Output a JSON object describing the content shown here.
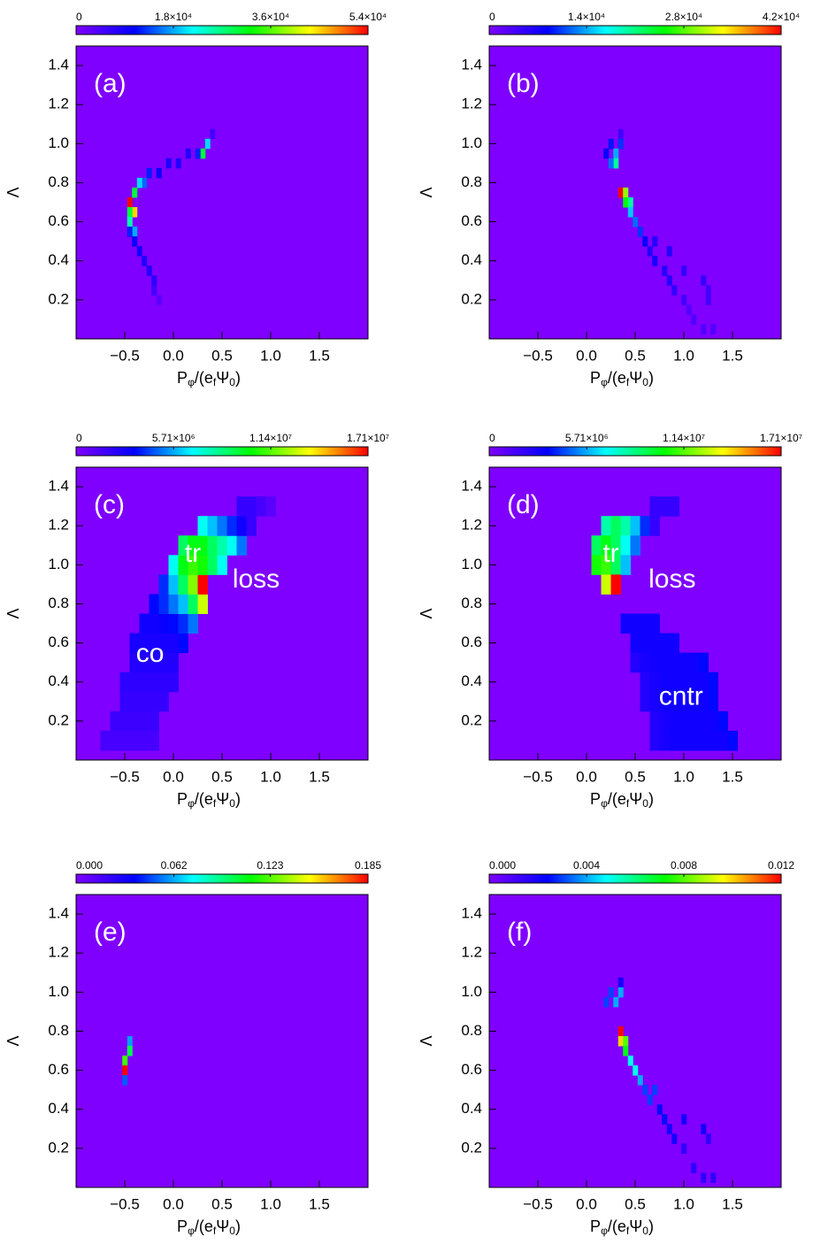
{
  "chart_data": [
    {
      "type": "heatmap",
      "label": "(a)",
      "clim": [
        0,
        54000
      ],
      "cbticks": [
        0,
        {
          "value": 18000,
          "label": "1.8×10⁴"
        },
        {
          "value": 36000,
          "label": "3.6×10⁴"
        },
        {
          "value": 54000,
          "label": "5.4×10⁴"
        }
      ],
      "colormap": [
        "#7f00ff",
        "#0000ff",
        "#00ffff",
        "#00ff00",
        "#ffff00",
        "#ff0000"
      ],
      "xlim": [
        -1.0,
        2.0
      ],
      "xticks": [
        {
          "value": -0.5,
          "label": "−0.5"
        },
        {
          "value": 0,
          "label": "0.0"
        },
        0.5,
        {
          "value": 1,
          "label": "1.0"
        },
        1.5
      ],
      "ylim": [
        0,
        1.5
      ],
      "yticks": [
        0.2,
        0.4,
        0.6,
        0.8,
        {
          "value": 1,
          "label": "1.0"
        },
        1.2,
        1.4
      ],
      "xlabel": [
        "P",
        "φ",
        "/(e",
        "f",
        "Ψ",
        "0",
        ")"
      ],
      "ylabel": "Λ",
      "x": [
        0.4,
        0.35,
        0.3,
        0.25,
        0.15,
        0.05,
        -0.05,
        -0.15,
        -0.25,
        -0.3,
        -0.35,
        -0.4,
        -0.45,
        -0.4,
        -0.45,
        -0.45,
        -0.4,
        -0.45,
        -0.4,
        -0.35,
        -0.3,
        -0.25,
        -0.2,
        -0.2,
        -0.15
      ],
      "y": [
        1.05,
        1.0,
        0.95,
        0.95,
        0.95,
        0.9,
        0.9,
        0.85,
        0.85,
        0.8,
        0.8,
        0.75,
        0.7,
        0.65,
        0.65,
        0.6,
        0.55,
        0.55,
        0.5,
        0.45,
        0.4,
        0.35,
        0.3,
        0.25,
        0.2
      ],
      "values": [
        5000,
        20000,
        30000,
        12000,
        8000,
        8000,
        9000,
        10000,
        12000,
        15000,
        20000,
        30000,
        54000,
        45000,
        30000,
        25000,
        18000,
        12000,
        10000,
        9000,
        8000,
        8000,
        7000,
        5000,
        3000
      ],
      "annotations": []
    },
    {
      "type": "heatmap",
      "label": "(b)",
      "clim": [
        0,
        42000
      ],
      "cbticks": [
        0,
        {
          "value": 14000,
          "label": "1.4×10⁴"
        },
        {
          "value": 28000,
          "label": "2.8×10⁴"
        },
        {
          "value": 42000,
          "label": "4.2×10⁴"
        }
      ],
      "colormap": [
        "#7f00ff",
        "#0000ff",
        "#00ffff",
        "#00ff00",
        "#ffff00",
        "#ff0000"
      ],
      "xlim": [
        -1.0,
        2.0
      ],
      "xticks": [
        {
          "value": -0.5,
          "label": "−0.5"
        },
        {
          "value": 0,
          "label": "0.0"
        },
        0.5,
        {
          "value": 1,
          "label": "1.0"
        },
        1.5
      ],
      "ylim": [
        0,
        1.5
      ],
      "yticks": [
        0.2,
        0.4,
        0.6,
        0.8,
        {
          "value": 1,
          "label": "1.0"
        },
        1.2,
        1.4
      ],
      "xlabel": [
        "P",
        "φ",
        "/(e",
        "f",
        "Ψ",
        "0",
        ")"
      ],
      "ylabel": "Λ",
      "x": [
        0.35,
        0.25,
        0.35,
        0.2,
        0.3,
        0.3,
        0.25,
        0.35,
        0.4,
        0.4,
        0.45,
        0.45,
        0.5,
        0.55,
        0.6,
        0.7,
        0.85,
        0.65,
        0.7,
        0.8,
        1.0,
        0.85,
        1.2,
        0.9,
        1.25,
        1.0,
        1.25,
        1.05,
        1.1,
        1.2,
        1.3
      ],
      "y": [
        1.05,
        1.0,
        1.0,
        0.95,
        0.95,
        0.9,
        0.9,
        0.75,
        0.75,
        0.7,
        0.7,
        0.65,
        0.6,
        0.55,
        0.5,
        0.5,
        0.45,
        0.45,
        0.4,
        0.35,
        0.35,
        0.3,
        0.3,
        0.25,
        0.25,
        0.2,
        0.2,
        0.15,
        0.1,
        0.05,
        0.05
      ],
      "values": [
        4000,
        9000,
        10000,
        8000,
        14000,
        20000,
        12000,
        42000,
        30000,
        25000,
        20000,
        15000,
        12000,
        10000,
        8000,
        6000,
        6000,
        6000,
        7000,
        6000,
        5000,
        6000,
        5000,
        5000,
        4000,
        4000,
        4000,
        3000,
        3000,
        3000,
        3000
      ],
      "annotations": []
    },
    {
      "type": "heatmap",
      "label": "(c)",
      "clim": [
        0,
        17100000
      ],
      "cbticks": [
        0,
        {
          "value": 5710000,
          "label": "5.71×10⁶"
        },
        {
          "value": 11400000,
          "label": "1.14×10⁷"
        },
        {
          "value": 17100000,
          "label": "1.71×10⁷"
        }
      ],
      "colormap": [
        "#7f00ff",
        "#0000ff",
        "#00ffff",
        "#00ff00",
        "#ffff00",
        "#ff0000"
      ],
      "xlim": [
        -1.0,
        2.0
      ],
      "xticks": [
        {
          "value": -0.5,
          "label": "−0.5"
        },
        {
          "value": 0,
          "label": "0.0"
        },
        0.5,
        {
          "value": 1,
          "label": "1.0"
        },
        1.5
      ],
      "ylim": [
        0,
        1.5
      ],
      "yticks": [
        0.2,
        0.4,
        0.6,
        0.8,
        {
          "value": 1,
          "label": "1.0"
        },
        1.2,
        1.4
      ],
      "xlabel": [
        "P",
        "φ",
        "/(e",
        "f",
        "Ψ",
        "0",
        ")"
      ],
      "ylabel": "Λ",
      "x": [
        -0.7,
        -0.6,
        -0.5,
        -0.4,
        -0.3,
        -0.2,
        -0.6,
        -0.5,
        -0.4,
        -0.3,
        -0.2,
        -0.5,
        -0.4,
        -0.3,
        -0.2,
        -0.1,
        -0.5,
        -0.4,
        -0.3,
        -0.2,
        -0.1,
        0.0,
        -0.4,
        -0.3,
        -0.2,
        -0.1,
        0.0,
        -0.4,
        -0.3,
        -0.2,
        -0.1,
        0.0,
        0.1,
        -0.3,
        -0.2,
        -0.1,
        0.0,
        0.1,
        0.2,
        -0.2,
        -0.1,
        0.0,
        0.1,
        0.2,
        0.3,
        -0.1,
        0.0,
        0.1,
        0.2,
        0.3,
        0.0,
        0.1,
        0.2,
        0.3,
        0.4,
        0.5,
        0.1,
        0.2,
        0.3,
        0.4,
        0.5,
        0.6,
        0.7,
        0.3,
        0.4,
        0.5,
        0.6,
        0.7,
        0.8,
        0.7,
        0.8,
        0.9,
        1.0
      ],
      "y": [
        0.1,
        0.1,
        0.1,
        0.1,
        0.1,
        0.1,
        0.2,
        0.2,
        0.2,
        0.2,
        0.2,
        0.3,
        0.3,
        0.3,
        0.3,
        0.3,
        0.4,
        0.4,
        0.4,
        0.4,
        0.4,
        0.4,
        0.5,
        0.5,
        0.5,
        0.5,
        0.5,
        0.6,
        0.6,
        0.6,
        0.6,
        0.6,
        0.6,
        0.7,
        0.7,
        0.7,
        0.7,
        0.7,
        0.7,
        0.8,
        0.8,
        0.8,
        0.8,
        0.8,
        0.8,
        0.9,
        0.9,
        0.9,
        0.9,
        0.9,
        1.0,
        1.0,
        1.0,
        1.0,
        1.0,
        1.0,
        1.1,
        1.1,
        1.1,
        1.1,
        1.1,
        1.1,
        1.1,
        1.2,
        1.2,
        1.2,
        1.2,
        1.2,
        1.2,
        1.3,
        1.3,
        1.3,
        1.3
      ],
      "values": [
        1500000,
        1500000,
        1500000,
        1500000,
        1500000,
        1500000,
        1800000,
        1800000,
        1800000,
        1800000,
        1800000,
        2000000,
        2000000,
        2000000,
        2000000,
        2000000,
        2200000,
        2200000,
        2200000,
        2200000,
        2200000,
        2200000,
        2500000,
        2500000,
        2500000,
        2500000,
        2500000,
        2800000,
        2800000,
        2800000,
        2800000,
        2800000,
        3500000,
        3000000,
        3000000,
        3200000,
        3500000,
        4000000,
        5000000,
        3500000,
        4000000,
        5000000,
        6000000,
        9000000,
        13000000,
        4000000,
        6000000,
        9000000,
        12000000,
        17100000,
        7000000,
        10000000,
        11000000,
        10500000,
        9000000,
        7000000,
        9000000,
        10000000,
        10000000,
        9000000,
        8000000,
        7000000,
        5000000,
        7000000,
        6000000,
        5000000,
        4000000,
        3000000,
        2000000,
        2000000,
        2000000,
        1500000,
        1000000
      ],
      "annotations": [
        "tr",
        "loss",
        "co"
      ]
    },
    {
      "type": "heatmap",
      "label": "(d)",
      "clim": [
        0,
        17100000
      ],
      "cbticks": [
        0,
        {
          "value": 5710000,
          "label": "5.71×10⁶"
        },
        {
          "value": 11400000,
          "label": "1.14×10⁷"
        },
        {
          "value": 17100000,
          "label": "1.71×10⁷"
        }
      ],
      "colormap": [
        "#7f00ff",
        "#0000ff",
        "#00ffff",
        "#00ff00",
        "#ffff00",
        "#ff0000"
      ],
      "xlim": [
        -1.0,
        2.0
      ],
      "xticks": [
        {
          "value": -0.5,
          "label": "−0.5"
        },
        {
          "value": 0,
          "label": "0.0"
        },
        0.5,
        {
          "value": 1,
          "label": "1.0"
        },
        1.5
      ],
      "ylim": [
        0,
        1.5
      ],
      "yticks": [
        0.2,
        0.4,
        0.6,
        0.8,
        {
          "value": 1,
          "label": "1.0"
        },
        1.2,
        1.4
      ],
      "xlabel": [
        "P",
        "φ",
        "/(e",
        "f",
        "Ψ",
        "0",
        ")"
      ],
      "ylabel": "Λ",
      "x": [
        0.7,
        0.8,
        0.9,
        0.2,
        0.3,
        0.4,
        0.5,
        0.6,
        0.7,
        0.1,
        0.2,
        0.3,
        0.4,
        0.5,
        0.1,
        0.2,
        0.3,
        0.4,
        0.2,
        0.3,
        0.4,
        0.5,
        0.6,
        0.7,
        0.5,
        0.6,
        0.7,
        0.8,
        0.9,
        0.5,
        0.6,
        0.7,
        0.8,
        0.9,
        1.0,
        1.1,
        1.2,
        0.6,
        0.7,
        0.8,
        0.9,
        1.0,
        1.1,
        1.2,
        1.3,
        0.6,
        0.7,
        0.8,
        0.9,
        1.0,
        1.1,
        1.2,
        1.3,
        0.7,
        0.8,
        0.9,
        1.0,
        1.1,
        1.2,
        1.3,
        1.4,
        0.7,
        0.8,
        0.9,
        1.0,
        1.1,
        1.2,
        1.3,
        1.4,
        1.5
      ],
      "y": [
        1.3,
        1.3,
        1.3,
        1.2,
        1.2,
        1.2,
        1.2,
        1.2,
        1.2,
        1.1,
        1.1,
        1.1,
        1.1,
        1.1,
        1.0,
        1.0,
        1.0,
        1.0,
        0.9,
        0.9,
        0.7,
        0.7,
        0.7,
        0.7,
        0.6,
        0.6,
        0.6,
        0.6,
        0.6,
        0.5,
        0.5,
        0.5,
        0.5,
        0.5,
        0.5,
        0.5,
        0.5,
        0.4,
        0.4,
        0.4,
        0.4,
        0.4,
        0.4,
        0.4,
        0.4,
        0.3,
        0.3,
        0.3,
        0.3,
        0.3,
        0.3,
        0.3,
        0.3,
        0.2,
        0.2,
        0.2,
        0.2,
        0.2,
        0.2,
        0.2,
        0.2,
        0.1,
        0.1,
        0.1,
        0.1,
        0.1,
        0.1,
        0.1,
        0.1,
        0.1
      ],
      "values": [
        2000000,
        2000000,
        2000000,
        8000000,
        9000000,
        8000000,
        6000000,
        4000000,
        2000000,
        9000000,
        10000000,
        9000000,
        7000000,
        5000000,
        10500000,
        11000000,
        9000000,
        6000000,
        13000000,
        17100000,
        3000000,
        3000000,
        3000000,
        3000000,
        3000000,
        3000000,
        3000000,
        3000000,
        3000000,
        2500000,
        2800000,
        3000000,
        3000000,
        3000000,
        3000000,
        3000000,
        3500000,
        2500000,
        2800000,
        3000000,
        3000000,
        3000000,
        3000000,
        3000000,
        3500000,
        2500000,
        2800000,
        3000000,
        3000000,
        3000000,
        3000000,
        3000000,
        3500000,
        2500000,
        2800000,
        3000000,
        3000000,
        3000000,
        3000000,
        3000000,
        3500000,
        2500000,
        2800000,
        3000000,
        3000000,
        3000000,
        3000000,
        3000000,
        3000000,
        3500000
      ],
      "annotations": [
        "tr",
        "loss",
        "cntr"
      ]
    },
    {
      "type": "heatmap",
      "label": "(e)",
      "clim": [
        0,
        0.185
      ],
      "cbticks": [
        {
          "value": 0,
          "label": "0.000"
        },
        0.062,
        0.123,
        0.185
      ],
      "colormap": [
        "#7f00ff",
        "#0000ff",
        "#00ffff",
        "#00ff00",
        "#ffff00",
        "#ff0000"
      ],
      "xlim": [
        -1.0,
        2.0
      ],
      "xticks": [
        {
          "value": -0.5,
          "label": "−0.5"
        },
        {
          "value": 0,
          "label": "0.0"
        },
        0.5,
        {
          "value": 1,
          "label": "1.0"
        },
        1.5
      ],
      "ylim": [
        0,
        1.5
      ],
      "yticks": [
        0.2,
        0.4,
        0.6,
        0.8,
        {
          "value": 1,
          "label": "1.0"
        },
        1.2,
        1.4
      ],
      "xlabel": [
        "P",
        "φ",
        "/(e",
        "f",
        "Ψ",
        "0",
        ")"
      ],
      "ylabel": "Λ",
      "x": [
        -0.45,
        -0.45,
        -0.5,
        -0.5,
        -0.5
      ],
      "y": [
        0.75,
        0.7,
        0.65,
        0.6,
        0.55
      ],
      "values": [
        0.06,
        0.1,
        0.12,
        0.185,
        0.05
      ],
      "annotations": []
    },
    {
      "type": "heatmap",
      "label": "(f)",
      "clim": [
        0,
        0.012
      ],
      "cbticks": [
        {
          "value": 0,
          "label": "0.000"
        },
        {
          "value": 0.004,
          "label": "0.004"
        },
        {
          "value": 0.008,
          "label": "0.008"
        },
        0.012
      ],
      "colormap": [
        "#7f00ff",
        "#0000ff",
        "#00ffff",
        "#00ff00",
        "#ffff00",
        "#ff0000"
      ],
      "xlim": [
        -1.0,
        2.0
      ],
      "xticks": [
        {
          "value": -0.5,
          "label": "−0.5"
        },
        {
          "value": 0,
          "label": "0.0"
        },
        0.5,
        {
          "value": 1,
          "label": "1.0"
        },
        1.5
      ],
      "ylim": [
        0,
        1.5
      ],
      "yticks": [
        0.2,
        0.4,
        0.6,
        0.8,
        {
          "value": 1,
          "label": "1.0"
        },
        1.2,
        1.4
      ],
      "xlabel": [
        "P",
        "φ",
        "/(e",
        "f",
        "Ψ",
        "0",
        ")"
      ],
      "ylabel": "Λ",
      "x": [
        0.35,
        0.25,
        0.35,
        0.2,
        0.3,
        0.35,
        0.35,
        0.4,
        0.4,
        0.45,
        0.5,
        0.55,
        0.6,
        0.7,
        0.65,
        0.75,
        0.8,
        0.85,
        1.0,
        0.9,
        1.2,
        1.0,
        1.25,
        1.1,
        1.2,
        1.3
      ],
      "y": [
        1.05,
        1.0,
        1.0,
        0.95,
        0.95,
        0.8,
        0.75,
        0.75,
        0.7,
        0.65,
        0.6,
        0.55,
        0.5,
        0.5,
        0.45,
        0.4,
        0.35,
        0.3,
        0.35,
        0.25,
        0.3,
        0.2,
        0.25,
        0.1,
        0.05,
        0.05
      ],
      "values": [
        0.002,
        0.003,
        0.004,
        0.003,
        0.004,
        0.012,
        0.01,
        0.008,
        0.007,
        0.005,
        0.005,
        0.004,
        0.003,
        0.003,
        0.003,
        0.0025,
        0.0025,
        0.002,
        0.002,
        0.002,
        0.002,
        0.0015,
        0.0015,
        0.0015,
        0.0015,
        0.0015
      ],
      "annotations": []
    }
  ]
}
